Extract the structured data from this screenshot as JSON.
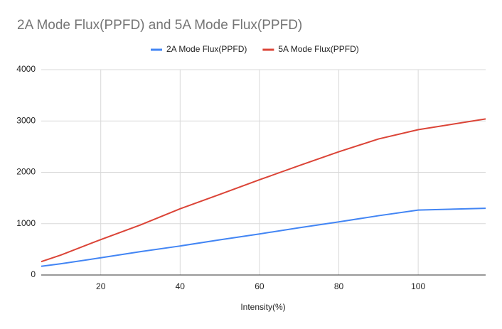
{
  "chart_data": {
    "type": "line",
    "title": "2A Mode Flux(PPFD) and 5A Mode Flux(PPFD)",
    "x_label": "Intensity(%)",
    "x": [
      5,
      10,
      20,
      30,
      40,
      50,
      60,
      70,
      80,
      90,
      100,
      117
    ],
    "series": [
      {
        "name": "2A Mode Flux(PPFD)",
        "color": "#4285f4",
        "values": [
          170,
          220,
          335,
          455,
          565,
          685,
          800,
          920,
          1035,
          1155,
          1265,
          1300
        ]
      },
      {
        "name": "5A Mode Flux(PPFD)",
        "color": "#db4437",
        "values": [
          260,
          390,
          690,
          975,
          1290,
          1570,
          1855,
          2130,
          2400,
          2650,
          2830,
          3040
        ]
      }
    ],
    "xlim": [
      5,
      117
    ],
    "xticks": [
      20,
      40,
      60,
      80,
      100
    ],
    "ylim": [
      0,
      4000
    ],
    "yticks": [
      0,
      1000,
      2000,
      3000,
      4000
    ],
    "grid": true,
    "legend": "top"
  }
}
